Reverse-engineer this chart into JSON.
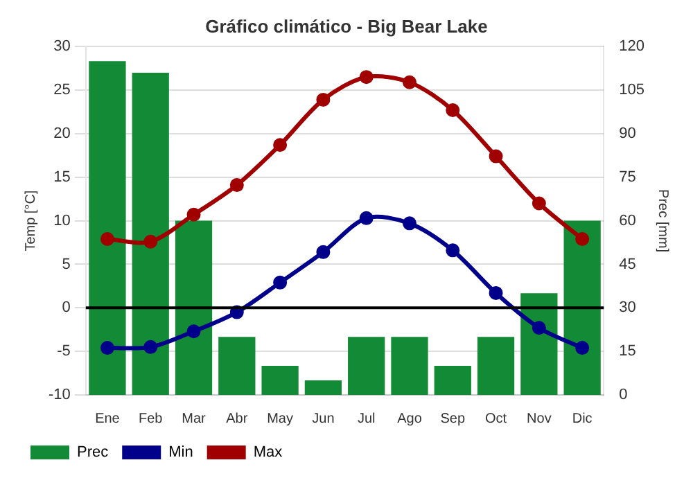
{
  "chart_data": {
    "type": "line",
    "title": "Gráfico climático - Big Bear Lake",
    "ylabel": "Temp [°C]",
    "y2label": "Prec [mm]",
    "categories": [
      "Ene",
      "Feb",
      "Mar",
      "Abr",
      "May",
      "Jun",
      "Jul",
      "Ago",
      "Sep",
      "Oct",
      "Nov",
      "Dic"
    ],
    "series": [
      {
        "name": "Prec",
        "type": "bar",
        "axis": "y2",
        "color": "#138a36",
        "values": [
          115,
          111,
          60,
          20,
          10,
          5,
          20,
          20,
          10,
          20,
          35,
          60
        ]
      },
      {
        "name": "Min",
        "color": "#00008b",
        "values": [
          -4.6,
          -4.5,
          -2.7,
          -0.5,
          2.9,
          6.4,
          10.3,
          9.7,
          6.6,
          1.7,
          -2.3,
          -4.6
        ]
      },
      {
        "name": "Max",
        "color": "#a00000",
        "values": [
          7.9,
          7.6,
          10.7,
          14.1,
          18.7,
          23.9,
          26.5,
          25.9,
          22.7,
          17.4,
          12.0,
          7.9
        ]
      }
    ],
    "ylim": [
      -10,
      30
    ],
    "yticks": [
      -10,
      -5,
      0,
      5,
      10,
      15,
      20,
      25,
      30
    ],
    "y2lim": [
      0,
      120
    ],
    "y2ticks": [
      0,
      15,
      30,
      45,
      60,
      75,
      90,
      105,
      120
    ],
    "ref_lines": [
      {
        "axis": "y",
        "value": 0,
        "color": "#000000"
      }
    ],
    "grid": "y",
    "legend": "bottom left",
    "marker": "circle",
    "line_style": "solid"
  }
}
